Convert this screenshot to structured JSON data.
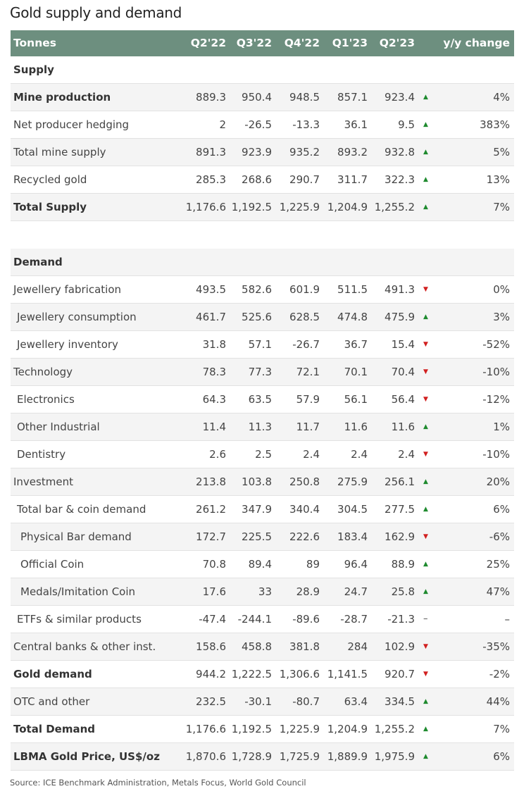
{
  "title": "Gold supply and demand",
  "header": {
    "label": "Tonnes",
    "cols": [
      "Q2'22",
      "Q3'22",
      "Q4'22",
      "Q1'23",
      "Q2'23"
    ],
    "change": "y/y change"
  },
  "supply": {
    "heading": "Supply",
    "rows": [
      {
        "label": "Mine production",
        "bold": true,
        "indent": 0,
        "v": [
          "889.3",
          "950.4",
          "948.5",
          "857.1",
          "923.4"
        ],
        "dir": "up",
        "yy": "4%"
      },
      {
        "label": "Net producer hedging",
        "indent": 0,
        "v": [
          "2",
          "-26.5",
          "-13.3",
          "36.1",
          "9.5"
        ],
        "dir": "up",
        "yy": "383%"
      },
      {
        "label": "Total mine supply",
        "indent": 0,
        "v": [
          "891.3",
          "923.9",
          "935.2",
          "893.2",
          "932.8"
        ],
        "dir": "up",
        "yy": "5%"
      },
      {
        "label": "Recycled gold",
        "indent": 0,
        "v": [
          "285.3",
          "268.6",
          "290.7",
          "311.7",
          "322.3"
        ],
        "dir": "up",
        "yy": "13%"
      },
      {
        "label": "Total Supply",
        "bold": true,
        "indent": 0,
        "v": [
          "1,176.6",
          "1,192.5",
          "1,225.9",
          "1,204.9",
          "1,255.2"
        ],
        "dir": "up",
        "yy": "7%"
      }
    ]
  },
  "demand": {
    "heading": "Demand",
    "rows": [
      {
        "label": "Jewellery fabrication",
        "indent": 0,
        "v": [
          "493.5",
          "582.6",
          "601.9",
          "511.5",
          "491.3"
        ],
        "dir": "down",
        "yy": "0%"
      },
      {
        "label": "Jewellery consumption",
        "indent": 1,
        "v": [
          "461.7",
          "525.6",
          "628.5",
          "474.8",
          "475.9"
        ],
        "dir": "up",
        "yy": "3%"
      },
      {
        "label": "Jewellery inventory",
        "indent": 1,
        "v": [
          "31.8",
          "57.1",
          "-26.7",
          "36.7",
          "15.4"
        ],
        "dir": "down",
        "yy": "-52%"
      },
      {
        "label": "Technology",
        "indent": 0,
        "v": [
          "78.3",
          "77.3",
          "72.1",
          "70.1",
          "70.4"
        ],
        "dir": "down",
        "yy": "-10%"
      },
      {
        "label": "Electronics",
        "indent": 1,
        "v": [
          "64.3",
          "63.5",
          "57.9",
          "56.1",
          "56.4"
        ],
        "dir": "down",
        "yy": "-12%"
      },
      {
        "label": "Other Industrial",
        "indent": 1,
        "v": [
          "11.4",
          "11.3",
          "11.7",
          "11.6",
          "11.6"
        ],
        "dir": "up",
        "yy": "1%"
      },
      {
        "label": "Dentistry",
        "indent": 1,
        "v": [
          "2.6",
          "2.5",
          "2.4",
          "2.4",
          "2.4"
        ],
        "dir": "down",
        "yy": "-10%"
      },
      {
        "label": "Investment",
        "indent": 0,
        "v": [
          "213.8",
          "103.8",
          "250.8",
          "275.9",
          "256.1"
        ],
        "dir": "up",
        "yy": "20%"
      },
      {
        "label": "Total bar & coin demand",
        "indent": 1,
        "v": [
          "261.2",
          "347.9",
          "340.4",
          "304.5",
          "277.5"
        ],
        "dir": "up",
        "yy": "6%"
      },
      {
        "label": "Physical Bar demand",
        "indent": 2,
        "v": [
          "172.7",
          "225.5",
          "222.6",
          "183.4",
          "162.9"
        ],
        "dir": "down",
        "yy": "-6%"
      },
      {
        "label": "Official Coin",
        "indent": 2,
        "v": [
          "70.8",
          "89.4",
          "89",
          "96.4",
          "88.9"
        ],
        "dir": "up",
        "yy": "25%"
      },
      {
        "label": "Medals/Imitation Coin",
        "indent": 2,
        "v": [
          "17.6",
          "33",
          "28.9",
          "24.7",
          "25.8"
        ],
        "dir": "up",
        "yy": "47%"
      },
      {
        "label": "ETFs & similar products",
        "indent": 1,
        "v": [
          "-47.4",
          "-244.1",
          "-89.6",
          "-28.7",
          "-21.3"
        ],
        "dir": "flat",
        "yy": "–"
      },
      {
        "label": "Central banks & other inst.",
        "indent": 0,
        "v": [
          "158.6",
          "458.8",
          "381.8",
          "284",
          "102.9"
        ],
        "dir": "down",
        "yy": "-35%"
      },
      {
        "label": "Gold demand",
        "bold": true,
        "indent": 0,
        "v": [
          "944.2",
          "1,222.5",
          "1,306.6",
          "1,141.5",
          "920.7"
        ],
        "dir": "down",
        "yy": "-2%"
      },
      {
        "label": "OTC and other",
        "indent": 0,
        "v": [
          "232.5",
          "-30.1",
          "-80.7",
          "63.4",
          "334.5"
        ],
        "dir": "up",
        "yy": "44%"
      },
      {
        "label": "Total Demand",
        "bold": true,
        "indent": 0,
        "v": [
          "1,176.6",
          "1,192.5",
          "1,225.9",
          "1,204.9",
          "1,255.2"
        ],
        "dir": "up",
        "yy": "7%"
      },
      {
        "label": "LBMA Gold Price, US$/oz",
        "bold": true,
        "indent": 0,
        "v": [
          "1,870.6",
          "1,728.9",
          "1,725.9",
          "1,889.9",
          "1,975.9"
        ],
        "dir": "up",
        "yy": "6%"
      }
    ]
  },
  "icons": {
    "up": "▲",
    "down": "▼",
    "flat": "–"
  },
  "colors": {
    "header": "#6d8f7f",
    "up": "#1e8a2e",
    "down": "#d11f1f"
  },
  "source": "Source: ICE Benchmark Administration, Metals Focus, World Gold Council"
}
